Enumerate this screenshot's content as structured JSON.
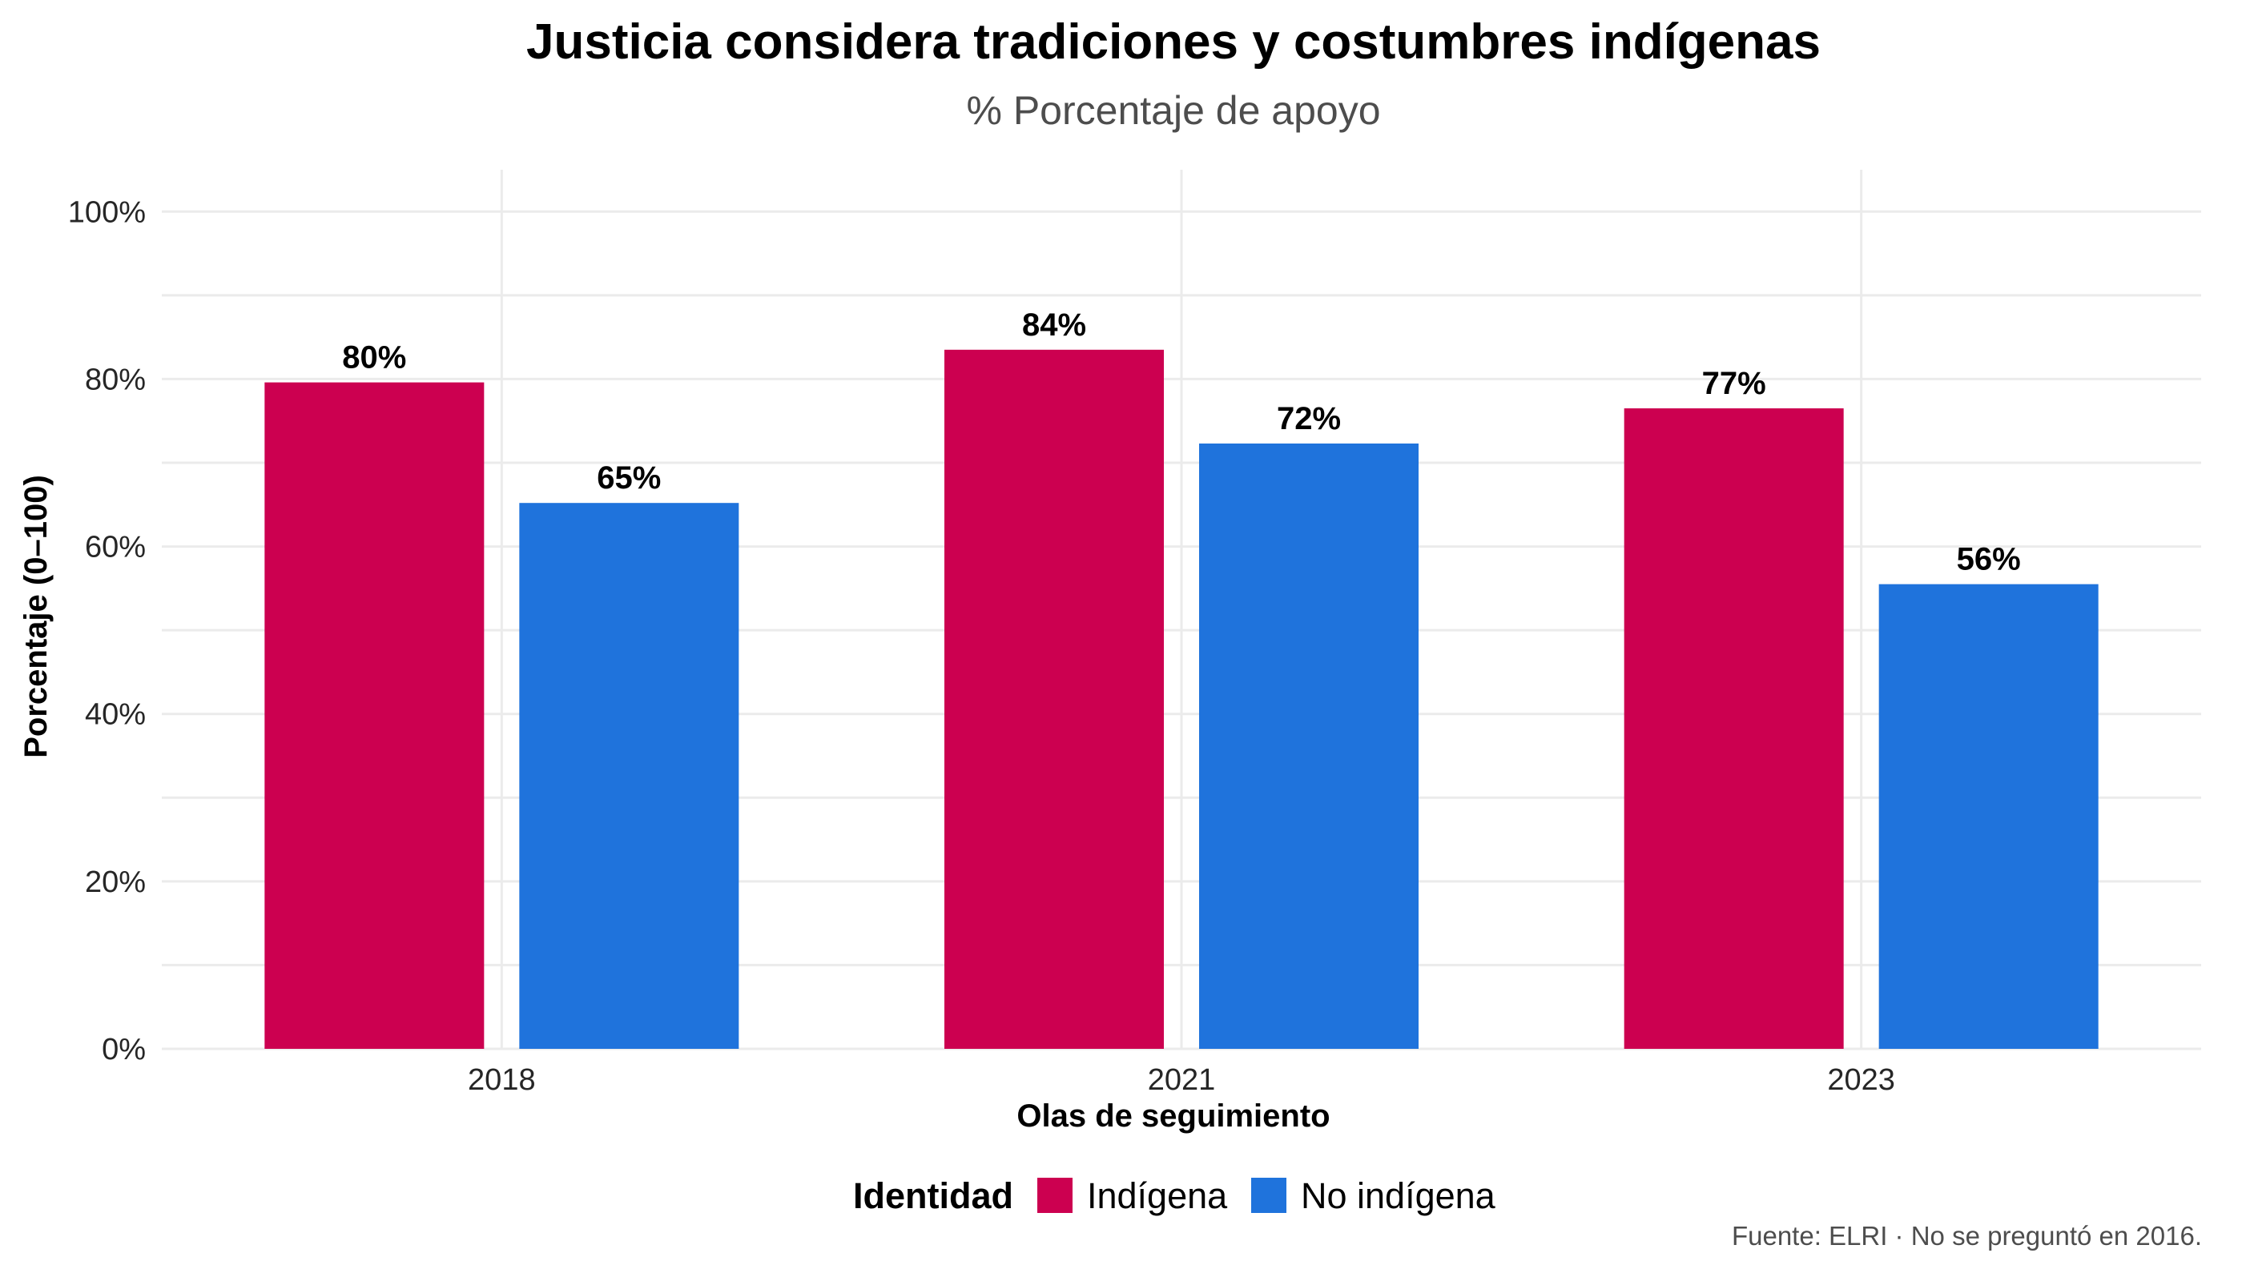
{
  "chart_data": {
    "type": "bar",
    "title": "Justicia considera tradiciones y costumbres indígenas",
    "subtitle": "% Porcentaje de apoyo",
    "xlabel": "Olas de seguimiento",
    "ylabel": "Porcentaje (0–100)",
    "categories": [
      "2018",
      "2021",
      "2023"
    ],
    "series": [
      {
        "name": "Indígena",
        "color": "#CC0050",
        "values": [
          79.6,
          83.5,
          76.5
        ],
        "labels": [
          "80%",
          "84%",
          "77%"
        ]
      },
      {
        "name": "No indígena",
        "color": "#1F73DC",
        "values": [
          65.2,
          72.3,
          55.5
        ],
        "labels": [
          "65%",
          "72%",
          "56%"
        ]
      }
    ],
    "ylim": [
      0,
      105
    ],
    "yticks": [
      0,
      20,
      40,
      60,
      80,
      100
    ],
    "ytick_labels": [
      "0%",
      "20%",
      "40%",
      "60%",
      "80%",
      "100%"
    ],
    "grid": true,
    "legend_title": "Identidad",
    "legend_position": "bottom",
    "caption": "Fuente: ELRI · No se preguntó en 2016."
  }
}
